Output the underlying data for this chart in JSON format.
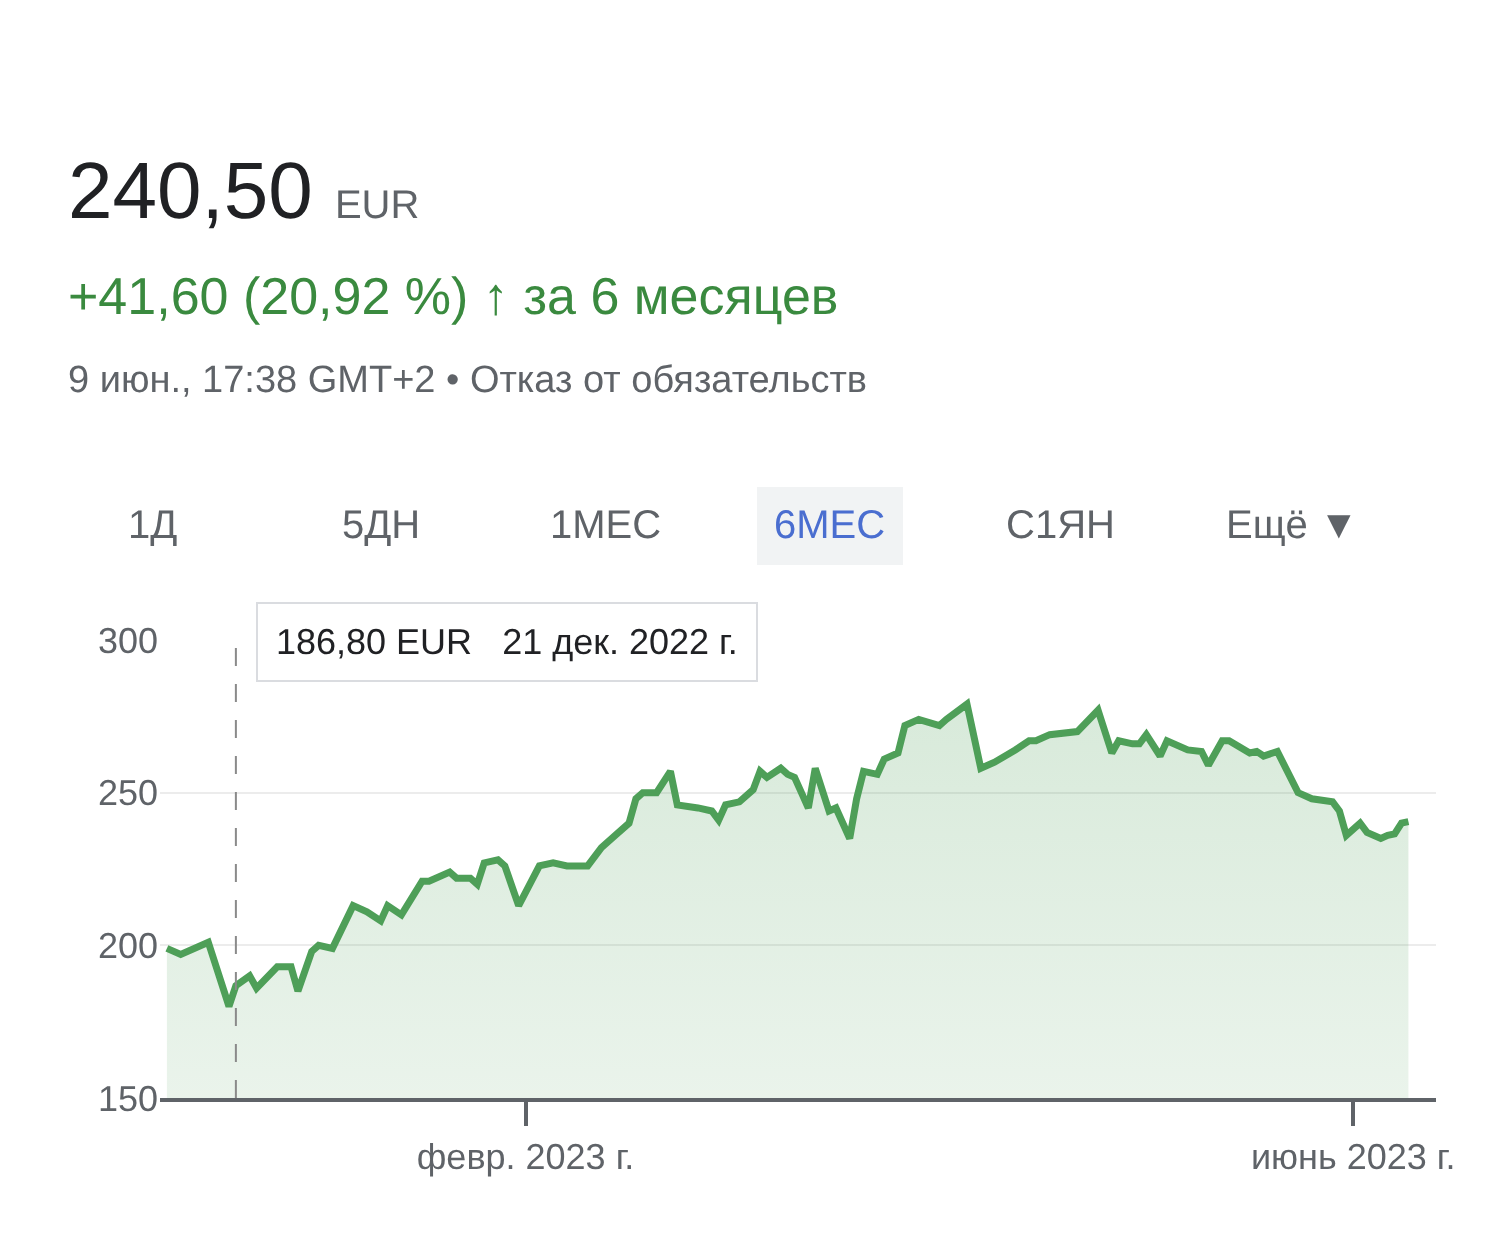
{
  "chart_data": {
    "type": "area",
    "title": "240,50 EUR",
    "subtitle": "+41,60 (20,92 %) ↑ за 6 месяцев",
    "annotations": [
      "9 июн., 17:38 GMT+2 • Отказ от обязательств",
      "1Д",
      "5ДН",
      "1МЕС",
      "6МЕС",
      "С1ЯН",
      "Ещё ▼",
      "186,80 EUR   21 дек. 2022 г."
    ],
    "x": [
      "2022-12-11",
      "2022-12-13",
      "2022-12-17",
      "2022-12-20",
      "2022-12-21",
      "2022-12-23",
      "2022-12-24",
      "2022-12-27",
      "2022-12-29",
      "2022-12-30",
      "2023-01-01",
      "2023-01-02",
      "2023-01-04",
      "2023-01-07",
      "2023-01-09",
      "2023-01-11",
      "2023-01-12",
      "2023-01-14",
      "2023-01-17",
      "2023-01-18",
      "2023-01-21",
      "2023-01-22",
      "2023-01-24",
      "2023-01-25",
      "2023-01-26",
      "2023-01-28",
      "2023-01-29",
      "2023-01-31",
      "2023-02-03",
      "2023-02-05",
      "2023-02-07",
      "2023-02-10",
      "2023-02-12",
      "2023-02-14",
      "2023-02-16",
      "2023-02-17",
      "2023-02-18",
      "2023-02-20",
      "2023-02-22",
      "2023-02-23",
      "2023-02-26",
      "2023-02-28",
      "2023-03-01",
      "2023-03-02",
      "2023-03-04",
      "2023-03-06",
      "2023-03-07",
      "2023-03-08",
      "2023-03-10",
      "2023-03-11",
      "2023-03-12",
      "2023-03-13",
      "2023-03-14",
      "2023-03-15",
      "2023-03-17",
      "2023-03-18",
      "2023-03-20",
      "2023-03-21",
      "2023-03-22",
      "2023-03-24",
      "2023-03-25",
      "2023-03-27",
      "2023-03-28",
      "2023-03-30",
      "2023-04-02",
      "2023-04-03",
      "2023-04-06",
      "2023-04-08",
      "2023-04-10",
      "2023-04-13",
      "2023-04-15",
      "2023-04-16",
      "2023-04-18",
      "2023-04-22",
      "2023-04-25",
      "2023-04-27",
      "2023-04-28",
      "2023-04-30",
      "2023-05-01",
      "2023-05-02",
      "2023-05-04",
      "2023-05-05",
      "2023-05-08",
      "2023-05-10",
      "2023-05-11",
      "2023-05-13",
      "2023-05-14",
      "2023-05-17",
      "2023-05-18",
      "2023-05-19",
      "2023-05-21",
      "2023-05-24",
      "2023-05-26",
      "2023-05-29",
      "2023-05-30",
      "2023-05-31",
      "2023-06-02",
      "2023-06-03",
      "2023-06-05",
      "2023-06-06",
      "2023-06-07",
      "2023-06-08",
      "2023-06-09"
    ],
    "series": [
      {
        "color": "#4e9f58",
        "values": [
          199,
          197,
          201,
          180,
          186.8,
          190,
          186,
          193,
          193,
          185,
          198,
          200,
          199,
          213,
          211,
          208,
          213,
          210,
          221,
          221,
          224,
          222,
          222,
          220,
          227,
          228,
          226,
          213,
          226,
          227,
          226,
          226,
          232,
          236,
          240,
          248,
          250,
          250,
          257,
          246,
          245,
          244,
          241,
          246,
          247,
          251,
          257,
          255,
          258,
          256,
          255,
          250,
          245,
          258,
          244,
          245,
          235,
          248,
          257,
          256,
          261,
          263,
          272,
          274,
          272,
          274,
          279,
          258,
          260,
          264,
          267,
          267,
          269,
          270,
          277,
          263,
          267,
          266,
          266,
          269,
          262,
          267,
          264,
          263.5,
          259,
          267,
          267,
          263,
          263.5,
          262,
          263.5,
          250,
          248,
          247,
          244,
          236,
          240,
          237,
          235,
          236,
          236.5,
          240,
          240.5
        ]
      }
    ],
    "xlim": [
      "2022-12-10",
      "2023-06-13"
    ],
    "xticks": [
      {
        "value": "2023-02-01",
        "label": "февр. 2023 г."
      },
      {
        "value": "2023-06-01",
        "label": "июнь 2023 г."
      }
    ],
    "ylim": [
      150,
      300
    ],
    "yticks": [
      150,
      200,
      250,
      300
    ],
    "ref_lines": [
      {
        "axis": "x",
        "value": "2022-12-21",
        "color": "#8a8a8a",
        "line_style": "dashed"
      }
    ],
    "grid": "y",
    "marker": "none",
    "line_style": "solid"
  }
}
